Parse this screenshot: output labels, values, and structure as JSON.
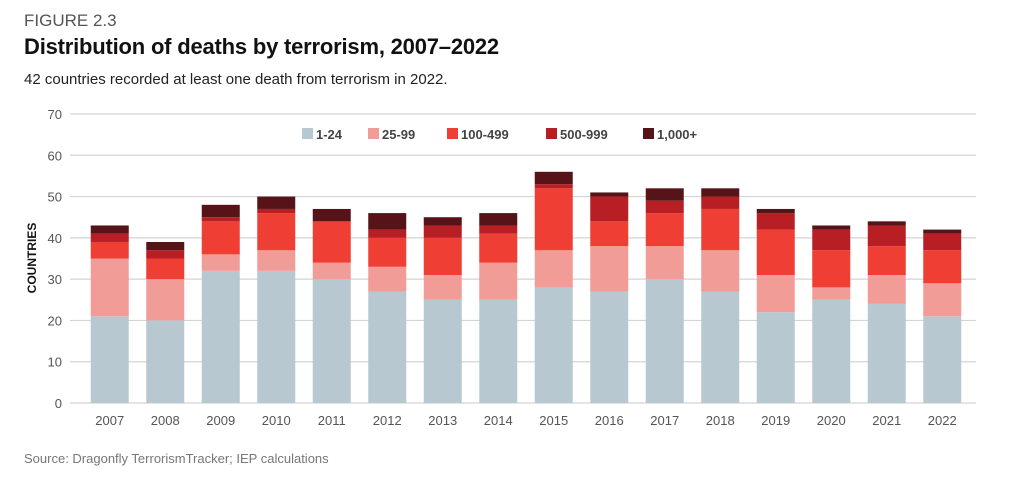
{
  "figure_label": "FIGURE 2.3",
  "title": "Distribution of deaths by terrorism, 2007–2022",
  "subtitle": "42 countries recorded at least one death from terrorism in 2022.",
  "source": "Source: Dragonfly TerrorismTracker; IEP calculations",
  "chart_data": {
    "type": "bar",
    "stacked": true,
    "title": "Distribution of deaths by terrorism, 2007–2022",
    "xlabel": "",
    "ylabel": "COUNTRIES",
    "ylim": [
      0,
      70
    ],
    "yticks": [
      0,
      10,
      20,
      30,
      40,
      50,
      60,
      70
    ],
    "grid": true,
    "legend_position": "top",
    "categories": [
      "2007",
      "2008",
      "2009",
      "2010",
      "2011",
      "2012",
      "2013",
      "2014",
      "2015",
      "2016",
      "2017",
      "2018",
      "2019",
      "2020",
      "2021",
      "2022"
    ],
    "series": [
      {
        "name": "1-24",
        "color": "#b7c8d1",
        "values": [
          21,
          20,
          32,
          32,
          30,
          27,
          25,
          25,
          28,
          27,
          30,
          27,
          22,
          25,
          24,
          21
        ]
      },
      {
        "name": "25-99",
        "color": "#f29c98",
        "values": [
          14,
          10,
          4,
          5,
          4,
          6,
          6,
          9,
          9,
          11,
          8,
          10,
          9,
          3,
          7,
          8
        ]
      },
      {
        "name": "100-499",
        "color": "#ef3e33",
        "values": [
          4,
          5,
          8,
          9,
          10,
          7,
          9,
          7,
          15,
          6,
          8,
          10,
          11,
          9,
          7,
          8
        ]
      },
      {
        "name": "500-999",
        "color": "#b81f25",
        "values": [
          2,
          2,
          1,
          1,
          0,
          2,
          3,
          2,
          1,
          6,
          3,
          3,
          4,
          5,
          5,
          4
        ]
      },
      {
        "name": "1,000+",
        "color": "#561418",
        "values": [
          2,
          2,
          3,
          3,
          3,
          4,
          2,
          3,
          3,
          1,
          3,
          2,
          1,
          1,
          1,
          1
        ]
      }
    ]
  }
}
